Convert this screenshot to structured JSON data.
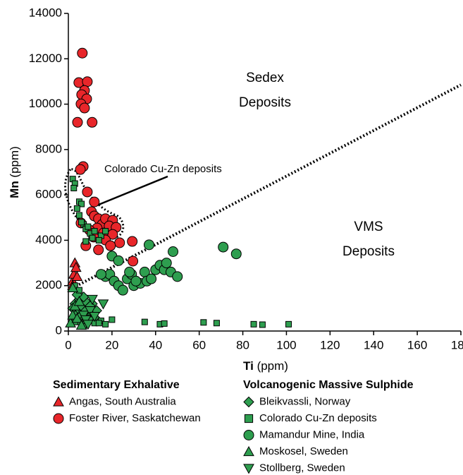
{
  "chart_data": {
    "type": "scatter",
    "xlabel": "Ti",
    "xlabel_unit": "(ppm)",
    "ylabel": "Mn",
    "ylabel_unit": "(ppm)",
    "xlim": [
      0,
      180
    ],
    "xticks": [
      0,
      20,
      40,
      60,
      80,
      100,
      120,
      140,
      160,
      180
    ],
    "ylim": [
      0,
      14000
    ],
    "yticks": [
      0,
      2000,
      4000,
      6000,
      8000,
      10000,
      12000,
      14000
    ],
    "grid": false,
    "annotations": [
      "Sedex",
      "Deposits",
      "VMS",
      "Deposits",
      "Colorado Cu-Zn deposits"
    ],
    "reference_line": {
      "x": [
        2,
        180
      ],
      "y": [
        1900,
        10850
      ]
    },
    "groups": [
      {
        "title": "Sedimentary Exhalative",
        "series": [
          {
            "name": "Angas, South Australia",
            "marker": "triangle",
            "color": "#e8262a",
            "x": [
              2,
              2.5,
              3,
              3.5,
              2,
              4
            ],
            "y": [
              2200,
              2500,
              3000,
              2800,
              2000,
              2400
            ]
          },
          {
            "name": "Foster River, Saskatchewan",
            "marker": "circle",
            "color": "#e8262a",
            "x": [
              6.4,
              4.8,
              8.7,
              7.4,
              6.1,
              8.4,
              5.8,
              7.4,
              4.2,
              10.9,
              6.8,
              5.5,
              8.7,
              11.9,
              10.6,
              11.9,
              13.8,
              15.5,
              17,
              20.3,
              13.2,
              18.7,
              21.9,
              5.8,
              9.7,
              16.1,
              20.3,
              11.6,
              17,
              8,
              13.8,
              23.5,
              29.3,
              29.6,
              19.3
            ],
            "y": [
              12250,
              10950,
              10990,
              10600,
              10420,
              10230,
              10010,
              9830,
              9200,
              9200,
              7250,
              7120,
              6130,
              5690,
              5260,
              5070,
              4950,
              4700,
              4950,
              4880,
              4540,
              4630,
              4570,
              4760,
              4450,
              4320,
              4260,
              4140,
              4010,
              3760,
              3580,
              3890,
              3950,
              3080,
              3760
            ]
          }
        ]
      },
      {
        "title": "Volcanogenic Massive Sulphide",
        "series": [
          {
            "name": "Bleikvassli, Norway",
            "marker": "diamond",
            "color": "#2e9e4f",
            "x": [
              3,
              4,
              5,
              6,
              7,
              8,
              9,
              10,
              11,
              12,
              3,
              5,
              7,
              9,
              4,
              6,
              8,
              10,
              13,
              2
            ],
            "y": [
              1200,
              900,
              1400,
              1100,
              800,
              1300,
              1000,
              700,
              1200,
              600,
              700,
              600,
              1500,
              500,
              1600,
              400,
              900,
              1100,
              900,
              1000
            ]
          },
          {
            "name": "Colorado Cu-Zn deposits",
            "marker": "square",
            "color": "#2e9e4f",
            "x": [
              2,
              3,
              2.5,
              5,
              6,
              4,
              5,
              7,
              8,
              10,
              12,
              15,
              14,
              11,
              9,
              17,
              6,
              8,
              3,
              5,
              5,
              8,
              10,
              12,
              15,
              17,
              20,
              35,
              42,
              44,
              62,
              68,
              85,
              89,
              101,
              7,
              14,
              3
            ],
            "y": [
              6700,
              6500,
              6300,
              5700,
              5600,
              5400,
              5100,
              4700,
              4500,
              4300,
              4400,
              4200,
              4000,
              4100,
              4600,
              4400,
              4800,
              3950,
              2000,
              1800,
              400,
              300,
              500,
              350,
              450,
              300,
              500,
              400,
              300,
              330,
              380,
              350,
              300,
              280,
              300,
              200,
              350,
              400
            ]
          },
          {
            "name": "Mamandur Mine, India",
            "marker": "circle",
            "color": "#2e9e4f",
            "x": [
              20,
              23,
              17,
              19,
              21,
              23,
              25,
              27,
              29,
              30,
              33,
              35,
              36,
              38,
              40,
              42,
              44,
              45,
              47,
              48,
              50,
              37,
              71,
              77,
              15,
              28,
              31
            ],
            "y": [
              3300,
              3100,
              2400,
              2500,
              2200,
              2000,
              1800,
              2300,
              2500,
              2000,
              2100,
              2600,
              2200,
              2300,
              2700,
              2900,
              2700,
              3000,
              2600,
              3500,
              2400,
              3800,
              3700,
              3400,
              2500,
              2600,
              2200
            ]
          },
          {
            "name": "Moskosel, Sweden",
            "marker": "triangle",
            "color": "#2e9e4f",
            "x": [
              1,
              2,
              3,
              4,
              5,
              2,
              6
            ],
            "y": [
              350,
              700,
              1100,
              550,
              1300,
              1900,
              250
            ]
          },
          {
            "name": "Stollberg, Sweden",
            "marker": "triangle-down",
            "color": "#2e9e4f",
            "x": [
              7,
              8,
              10,
              12,
              16,
              9,
              11
            ],
            "y": [
              700,
              500,
              900,
              650,
              1200,
              300,
              1400
            ]
          }
        ]
      }
    ]
  }
}
